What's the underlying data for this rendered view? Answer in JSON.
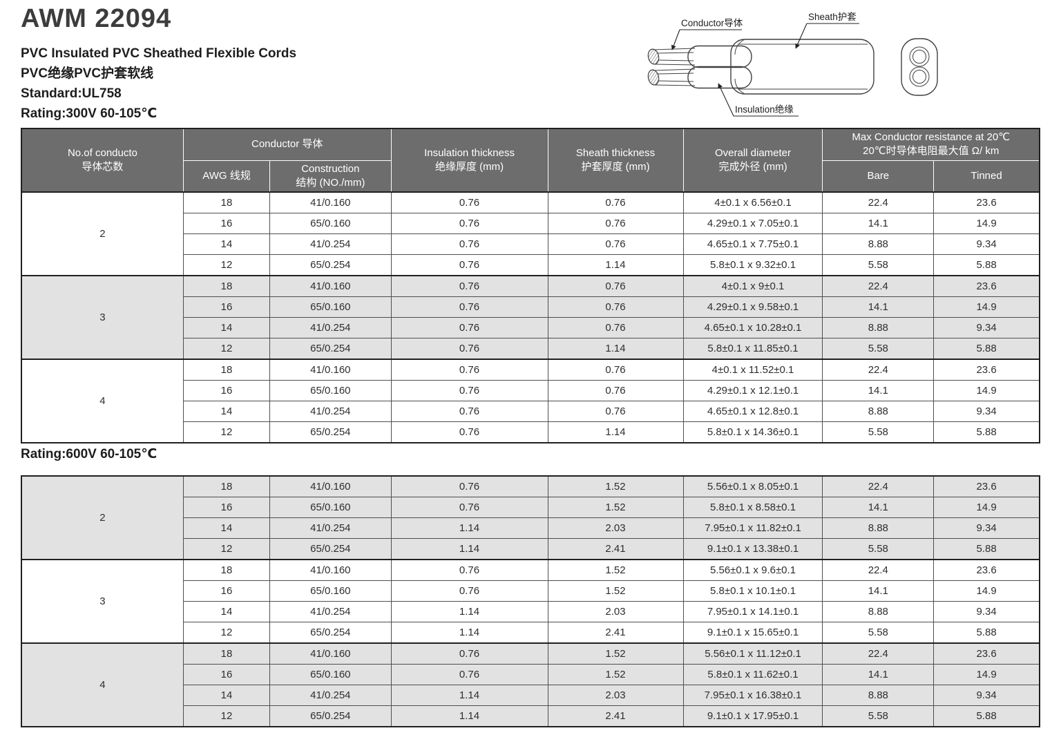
{
  "header": {
    "title": "AWM 22094",
    "subtitle_en": "PVC Insulated PVC Sheathed Flexible Cords",
    "subtitle_zh": "PVC绝缘PVC护套软线",
    "standard": "Standard:UL758",
    "rating_300v": "Rating:300V 60-105℃",
    "rating_600v": "Rating:600V 60-105℃"
  },
  "diagram": {
    "conductor_label": "Conductor导体",
    "sheath_label": "Sheath护套",
    "insulation_label": "Insulation绝缘"
  },
  "table_headers": {
    "cores_en": "No.of conducto",
    "cores_zh": "导体芯数",
    "conductor_group": "Conductor 导体",
    "awg": "AWG 线规",
    "construction_en": "Construction",
    "construction_zh": "结构 (NO./mm)",
    "insulation_en": "Insulation thickness",
    "insulation_zh": "绝缘厚度 (mm)",
    "sheath_en": "Sheath thickness",
    "sheath_zh": "护套厚度 (mm)",
    "diameter_en": "Overall diameter",
    "diameter_zh": "完成外径 (mm)",
    "resistance_en": "Max Conductor resistance at 20℃",
    "resistance_zh": "20℃时导体电阻最大值 Ω/ km",
    "bare": "Bare",
    "tinned": "Tinned"
  },
  "table_300": {
    "groups": [
      {
        "cores": "2",
        "shaded": false,
        "rows": [
          [
            "18",
            "41/0.160",
            "0.76",
            "0.76",
            "4±0.1 x 6.56±0.1",
            "22.4",
            "23.6"
          ],
          [
            "16",
            "65/0.160",
            "0.76",
            "0.76",
            "4.29±0.1 x 7.05±0.1",
            "14.1",
            "14.9"
          ],
          [
            "14",
            "41/0.254",
            "0.76",
            "0.76",
            "4.65±0.1 x 7.75±0.1",
            "8.88",
            "9.34"
          ],
          [
            "12",
            "65/0.254",
            "0.76",
            "1.14",
            "5.8±0.1 x 9.32±0.1",
            "5.58",
            "5.88"
          ]
        ]
      },
      {
        "cores": "3",
        "shaded": true,
        "rows": [
          [
            "18",
            "41/0.160",
            "0.76",
            "0.76",
            "4±0.1 x 9±0.1",
            "22.4",
            "23.6"
          ],
          [
            "16",
            "65/0.160",
            "0.76",
            "0.76",
            "4.29±0.1 x 9.58±0.1",
            "14.1",
            "14.9"
          ],
          [
            "14",
            "41/0.254",
            "0.76",
            "0.76",
            "4.65±0.1 x 10.28±0.1",
            "8.88",
            "9.34"
          ],
          [
            "12",
            "65/0.254",
            "0.76",
            "1.14",
            "5.8±0.1 x 11.85±0.1",
            "5.58",
            "5.88"
          ]
        ]
      },
      {
        "cores": "4",
        "shaded": false,
        "rows": [
          [
            "18",
            "41/0.160",
            "0.76",
            "0.76",
            "4±0.1 x 11.52±0.1",
            "22.4",
            "23.6"
          ],
          [
            "16",
            "65/0.160",
            "0.76",
            "0.76",
            "4.29±0.1 x 12.1±0.1",
            "14.1",
            "14.9"
          ],
          [
            "14",
            "41/0.254",
            "0.76",
            "0.76",
            "4.65±0.1 x 12.8±0.1",
            "8.88",
            "9.34"
          ],
          [
            "12",
            "65/0.254",
            "0.76",
            "1.14",
            "5.8±0.1 x 14.36±0.1",
            "5.58",
            "5.88"
          ]
        ]
      }
    ]
  },
  "table_600": {
    "groups": [
      {
        "cores": "2",
        "shaded": true,
        "rows": [
          [
            "18",
            "41/0.160",
            "0.76",
            "1.52",
            "5.56±0.1 x 8.05±0.1",
            "22.4",
            "23.6"
          ],
          [
            "16",
            "65/0.160",
            "0.76",
            "1.52",
            "5.8±0.1 x 8.58±0.1",
            "14.1",
            "14.9"
          ],
          [
            "14",
            "41/0.254",
            "1.14",
            "2.03",
            "7.95±0.1 x 11.82±0.1",
            "8.88",
            "9.34"
          ],
          [
            "12",
            "65/0.254",
            "1.14",
            "2.41",
            "9.1±0.1 x 13.38±0.1",
            "5.58",
            "5.88"
          ]
        ]
      },
      {
        "cores": "3",
        "shaded": false,
        "rows": [
          [
            "18",
            "41/0.160",
            "0.76",
            "1.52",
            "5.56±0.1 x 9.6±0.1",
            "22.4",
            "23.6"
          ],
          [
            "16",
            "65/0.160",
            "0.76",
            "1.52",
            "5.8±0.1 x 10.1±0.1",
            "14.1",
            "14.9"
          ],
          [
            "14",
            "41/0.254",
            "1.14",
            "2.03",
            "7.95±0.1 x 14.1±0.1",
            "8.88",
            "9.34"
          ],
          [
            "12",
            "65/0.254",
            "1.14",
            "2.41",
            "9.1±0.1 x 15.65±0.1",
            "5.58",
            "5.88"
          ]
        ]
      },
      {
        "cores": "4",
        "shaded": true,
        "rows": [
          [
            "18",
            "41/0.160",
            "0.76",
            "1.52",
            "5.56±0.1 x 11.12±0.1",
            "22.4",
            "23.6"
          ],
          [
            "16",
            "65/0.160",
            "0.76",
            "1.52",
            "5.8±0.1 x 11.62±0.1",
            "14.1",
            "14.9"
          ],
          [
            "14",
            "41/0.254",
            "1.14",
            "2.03",
            "7.95±0.1 x 16.38±0.1",
            "8.88",
            "9.34"
          ],
          [
            "12",
            "65/0.254",
            "1.14",
            "2.41",
            "9.1±0.1 x 17.95±0.1",
            "5.58",
            "5.88"
          ]
        ]
      }
    ]
  },
  "colors": {
    "header_bg": "#6d6d6d",
    "header_text": "#ffffff",
    "shaded_row_bg": "#e2e2e2",
    "border_dark": "#1f1f1f",
    "text": "#2e2e2e"
  }
}
